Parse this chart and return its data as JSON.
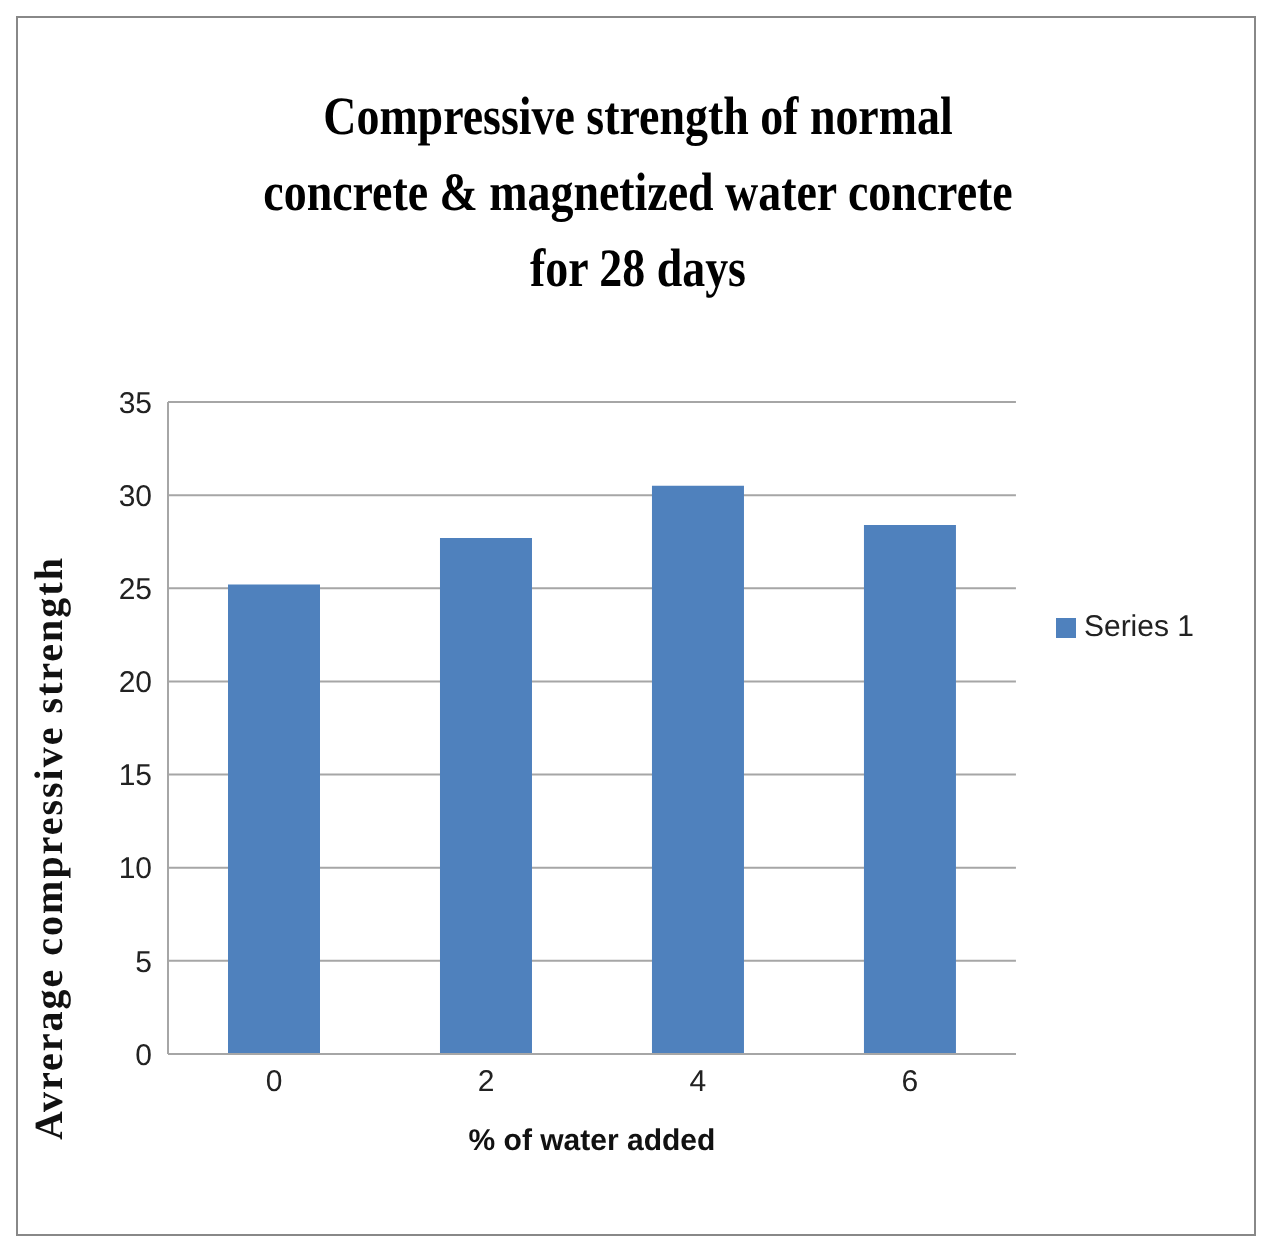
{
  "chart_data": {
    "type": "bar",
    "title": "Compressive strength of normal concrete & magnetized water concrete for 28 days",
    "xlabel": "% of water added",
    "ylabel": "Avrerage compressive strength",
    "categories": [
      "0",
      "2",
      "4",
      "6"
    ],
    "series": [
      {
        "name": "Series 1",
        "color": "#4f81bd",
        "values": [
          25.2,
          27.7,
          30.5,
          28.4
        ]
      }
    ],
    "ylim": [
      0,
      35
    ],
    "yticks": [
      0,
      5,
      10,
      15,
      20,
      25,
      30,
      35
    ],
    "grid": "y",
    "legend": "right"
  }
}
